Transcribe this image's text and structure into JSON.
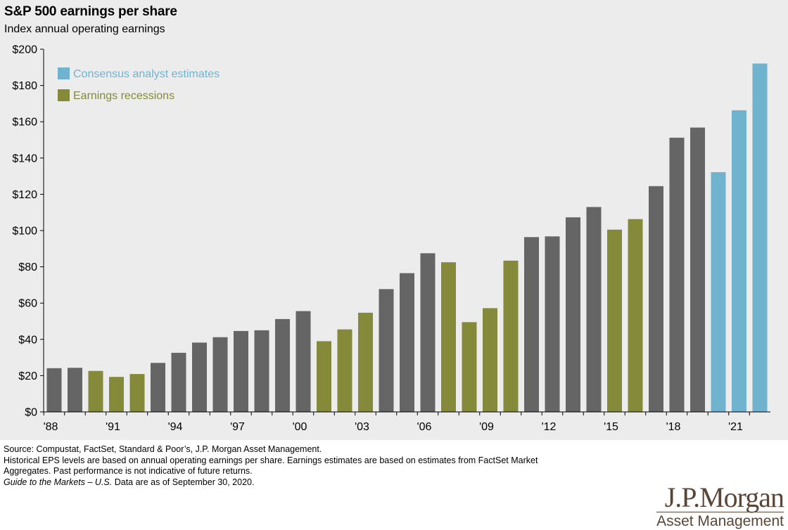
{
  "chart_data": {
    "type": "bar",
    "title": "S&P 500 earnings per share",
    "subtitle": "Index annual operating earnings",
    "ylim": [
      0,
      200
    ],
    "yticks": [
      "$0",
      "$20",
      "$40",
      "$60",
      "$80",
      "$100",
      "$120",
      "$140",
      "$160",
      "$180",
      "$200"
    ],
    "ytick_values": [
      0,
      20,
      40,
      60,
      80,
      100,
      120,
      140,
      160,
      180,
      200
    ],
    "xtick_labels": [
      {
        "label": "'88",
        "year": 1988
      },
      {
        "label": "'91",
        "year": 1991
      },
      {
        "label": "'94",
        "year": 1994
      },
      {
        "label": "'97",
        "year": 1997
      },
      {
        "label": "'00",
        "year": 2000
      },
      {
        "label": "'03",
        "year": 2003
      },
      {
        "label": "'06",
        "year": 2006
      },
      {
        "label": "'09",
        "year": 2009
      },
      {
        "label": "'12",
        "year": 2012
      },
      {
        "label": "'15",
        "year": 2015
      },
      {
        "label": "'18",
        "year": 2018
      },
      {
        "label": "'21",
        "year": 2021
      }
    ],
    "legend": [
      {
        "label": "Consensus analyst estimates",
        "color": "#6fb3cf"
      },
      {
        "label": "Earnings recessions",
        "color": "#858a3a"
      }
    ],
    "colors": {
      "actual": "#656565",
      "recession": "#858a3a",
      "estimate": "#6fb3cf"
    },
    "series": [
      {
        "year": 1988,
        "value": 24.1,
        "kind": "actual"
      },
      {
        "year": 1989,
        "value": 24.3,
        "kind": "actual"
      },
      {
        "year": 1990,
        "value": 22.6,
        "kind": "recession"
      },
      {
        "year": 1991,
        "value": 19.3,
        "kind": "recession"
      },
      {
        "year": 1992,
        "value": 20.9,
        "kind": "recession"
      },
      {
        "year": 1993,
        "value": 27.0,
        "kind": "actual"
      },
      {
        "year": 1994,
        "value": 32.6,
        "kind": "actual"
      },
      {
        "year": 1995,
        "value": 38.2,
        "kind": "actual"
      },
      {
        "year": 1996,
        "value": 41.2,
        "kind": "actual"
      },
      {
        "year": 1997,
        "value": 44.6,
        "kind": "actual"
      },
      {
        "year": 1998,
        "value": 45.0,
        "kind": "actual"
      },
      {
        "year": 1999,
        "value": 51.2,
        "kind": "actual"
      },
      {
        "year": 2000,
        "value": 55.6,
        "kind": "actual"
      },
      {
        "year": 2001,
        "value": 39.0,
        "kind": "recession"
      },
      {
        "year": 2002,
        "value": 45.5,
        "kind": "recession"
      },
      {
        "year": 2003,
        "value": 54.7,
        "kind": "recession"
      },
      {
        "year": 2004,
        "value": 67.7,
        "kind": "actual"
      },
      {
        "year": 2005,
        "value": 76.5,
        "kind": "actual"
      },
      {
        "year": 2006,
        "value": 87.5,
        "kind": "actual"
      },
      {
        "year": 2007,
        "value": 82.5,
        "kind": "recession"
      },
      {
        "year": 2008,
        "value": 49.5,
        "kind": "recession"
      },
      {
        "year": 2009,
        "value": 57.2,
        "kind": "recession"
      },
      {
        "year": 2010,
        "value": 83.4,
        "kind": "recession"
      },
      {
        "year": 2011,
        "value": 96.4,
        "kind": "actual"
      },
      {
        "year": 2012,
        "value": 96.8,
        "kind": "actual"
      },
      {
        "year": 2013,
        "value": 107.3,
        "kind": "actual"
      },
      {
        "year": 2014,
        "value": 113.0,
        "kind": "actual"
      },
      {
        "year": 2015,
        "value": 100.5,
        "kind": "recession"
      },
      {
        "year": 2016,
        "value": 106.3,
        "kind": "recession"
      },
      {
        "year": 2017,
        "value": 124.5,
        "kind": "actual"
      },
      {
        "year": 2018,
        "value": 151.2,
        "kind": "actual"
      },
      {
        "year": 2019,
        "value": 156.8,
        "kind": "actual"
      },
      {
        "year": 2020,
        "value": 132.2,
        "kind": "estimate"
      },
      {
        "year": 2021,
        "value": 166.3,
        "kind": "estimate"
      },
      {
        "year": 2022,
        "value": 192.1,
        "kind": "estimate"
      }
    ]
  },
  "footnotes": {
    "line1": "Source: Compustat, FactSet, Standard & Poor’s, J.P. Morgan Asset Management.",
    "line2": "Historical EPS levels are based on annual operating earnings per share. Earnings estimates are based on estimates from FactSet Market",
    "line3": "Aggregates. Past performance is not indicative of future returns.",
    "guide_italic": "Guide to the Markets – U.S.",
    "guide_rest": " Data are as of September 30, 2020."
  },
  "logo": {
    "name": "J.P.Morgan",
    "sub": "Asset Management"
  }
}
